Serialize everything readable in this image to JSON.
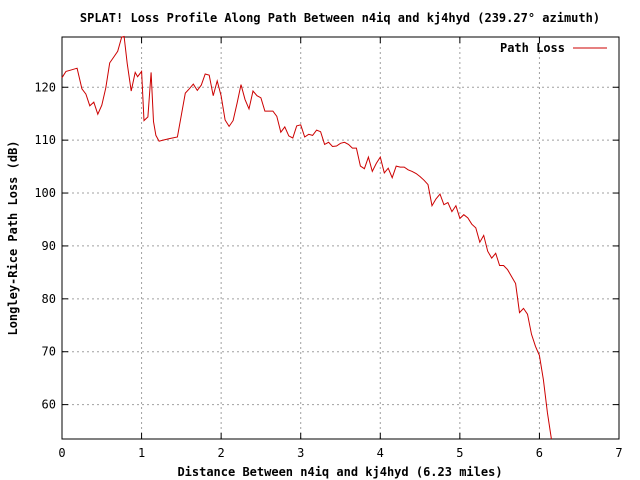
{
  "chart_data": {
    "type": "line",
    "title": "SPLAT! Loss Profile Along Path Between n4iq and kj4hyd (239.27° azimuth)",
    "xlabel": "Distance Between n4iq and kj4hyd (6.23 miles)",
    "ylabel": "Longley-Rice Path Loss (dB)",
    "xlim": [
      0,
      7
    ],
    "ylim": [
      53.5,
      129.5
    ],
    "xticks": [
      0,
      1,
      2,
      3,
      4,
      5,
      6,
      7
    ],
    "yticks": [
      60,
      70,
      80,
      90,
      100,
      110,
      120
    ],
    "grid": true,
    "legend_position": "top-right",
    "series": [
      {
        "name": "Path Loss",
        "color": "#cc0000",
        "x": [
          0.0,
          0.05,
          0.1,
          0.19,
          0.25,
          0.3,
          0.35,
          0.4,
          0.45,
          0.5,
          0.55,
          0.6,
          0.65,
          0.7,
          0.75,
          0.78,
          0.82,
          0.87,
          0.92,
          0.95,
          1.0,
          1.03,
          1.08,
          1.12,
          1.15,
          1.18,
          1.22,
          1.27,
          1.35,
          1.45,
          1.5,
          1.55,
          1.6,
          1.65,
          1.7,
          1.75,
          1.8,
          1.85,
          1.9,
          1.95,
          2.0,
          2.05,
          2.1,
          2.15,
          2.2,
          2.25,
          2.3,
          2.35,
          2.4,
          2.45,
          2.5,
          2.55,
          2.6,
          2.65,
          2.7,
          2.75,
          2.8,
          2.85,
          2.9,
          2.95,
          3.0,
          3.05,
          3.1,
          3.15,
          3.2,
          3.25,
          3.3,
          3.35,
          3.4,
          3.45,
          3.5,
          3.55,
          3.6,
          3.65,
          3.7,
          3.75,
          3.8,
          3.85,
          3.9,
          3.95,
          4.0,
          4.05,
          4.1,
          4.15,
          4.2,
          4.25,
          4.3,
          4.35,
          4.4,
          4.45,
          4.5,
          4.55,
          4.6,
          4.65,
          4.7,
          4.75,
          4.8,
          4.85,
          4.9,
          4.95,
          5.0,
          5.05,
          5.1,
          5.15,
          5.2,
          5.25,
          5.3,
          5.35,
          5.4,
          5.45,
          5.5,
          5.55,
          5.6,
          5.65,
          5.7,
          5.75,
          5.8,
          5.85,
          5.9,
          5.95,
          6.0,
          6.05,
          6.1,
          6.15
        ],
        "y": [
          121.8,
          123.0,
          123.2,
          123.6,
          119.7,
          118.7,
          116.5,
          117.2,
          114.9,
          116.6,
          119.9,
          124.6,
          125.7,
          126.8,
          129.5,
          129.6,
          124.5,
          119.3,
          122.8,
          122.0,
          123.0,
          113.7,
          114.4,
          122.8,
          113.5,
          110.9,
          109.8,
          110.0,
          110.3,
          110.6,
          114.8,
          118.9,
          119.7,
          120.6,
          119.4,
          120.4,
          122.5,
          122.3,
          118.4,
          121.2,
          118.4,
          113.8,
          112.6,
          113.7,
          117.0,
          120.5,
          117.7,
          115.9,
          119.3,
          118.4,
          118.0,
          115.5,
          115.5,
          115.5,
          114.5,
          111.5,
          112.5,
          110.8,
          110.4,
          112.7,
          112.9,
          110.6,
          111.1,
          110.9,
          111.9,
          111.6,
          109.2,
          109.6,
          108.8,
          108.9,
          109.4,
          109.6,
          109.2,
          108.5,
          108.5,
          105.1,
          104.6,
          106.8,
          104.1,
          105.6,
          106.8,
          103.8,
          104.7,
          102.9,
          105.1,
          104.9,
          104.9,
          104.4,
          104.1,
          103.7,
          103.1,
          102.4,
          101.6,
          97.6,
          98.9,
          99.8,
          97.8,
          98.2,
          96.5,
          97.6,
          95.2,
          95.9,
          95.3,
          94.1,
          93.4,
          90.7,
          92.0,
          89.0,
          87.7,
          88.6,
          86.3,
          86.3,
          85.5,
          84.2,
          82.9,
          77.4,
          78.2,
          77.1,
          73.3,
          71.0,
          69.3,
          64.7,
          58.5,
          53.5
        ]
      }
    ]
  }
}
